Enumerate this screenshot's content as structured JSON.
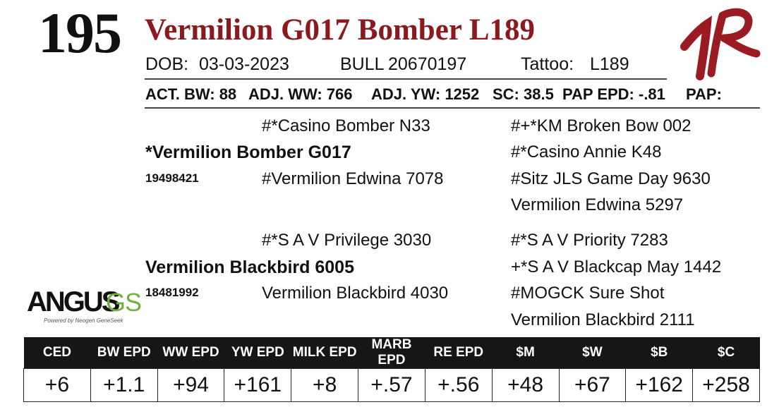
{
  "lot_number": "195",
  "animal_name": "Vermilion G017 Bomber L189",
  "info": {
    "dob_label": "DOB:",
    "dob_value": "03-03-2023",
    "sex_label": "BULL",
    "reg_number": "20670197",
    "tattoo_label": "Tattoo:",
    "tattoo_value": "L189"
  },
  "measures": {
    "act_bw": "ACT. BW: 88",
    "adj_ww": "ADJ. WW: 766",
    "adj_yw": "ADJ. YW: 1252",
    "sc": "SC: 38.5",
    "pap_epd": "PAP EPD: -.81",
    "pap": "PAP:"
  },
  "pedigree": {
    "sire": "*Vermilion Bomber G017",
    "sire_reg": "19498421",
    "sire_sire": "#*Casino Bomber N33",
    "sire_dam": "#Vermilion Edwina 7078",
    "sss": "#+*KM Broken Bow 002",
    "ssd": "#*Casino Annie K48",
    "sds": "#Sitz JLS Game Day 9630",
    "sdd": "Vermilion Edwina 5297",
    "dam": "Vermilion Blackbird 6005",
    "dam_reg": "18481992",
    "dam_sire": "#*S A V Privilege 3030",
    "dam_dam": "Vermilion Blackbird 4030",
    "dss": "#*S A V Priority 7283",
    "dsd": "+*S A V Blackcap May 1442",
    "dds": "#MOGCK Sure Shot",
    "ddd": "Vermilion Blackbird 2111"
  },
  "logo": {
    "angus": "ANGUS",
    "gs": "GS",
    "tagline": "Powered by Neogen GeneSeek",
    "brand_color": "#8b1a1f",
    "gs_color": "#6fb23f"
  },
  "epds": {
    "headers": [
      "CED",
      "BW EPD",
      "WW EPD",
      "YW EPD",
      "MILK EPD",
      "MARB EPD",
      "RE EPD",
      "$M",
      "$W",
      "$B",
      "$C"
    ],
    "values": [
      "+6",
      "+1.1",
      "+94",
      "+161",
      "+8",
      "+.57",
      "+.56",
      "+48",
      "+67",
      "+162",
      "+258"
    ]
  }
}
